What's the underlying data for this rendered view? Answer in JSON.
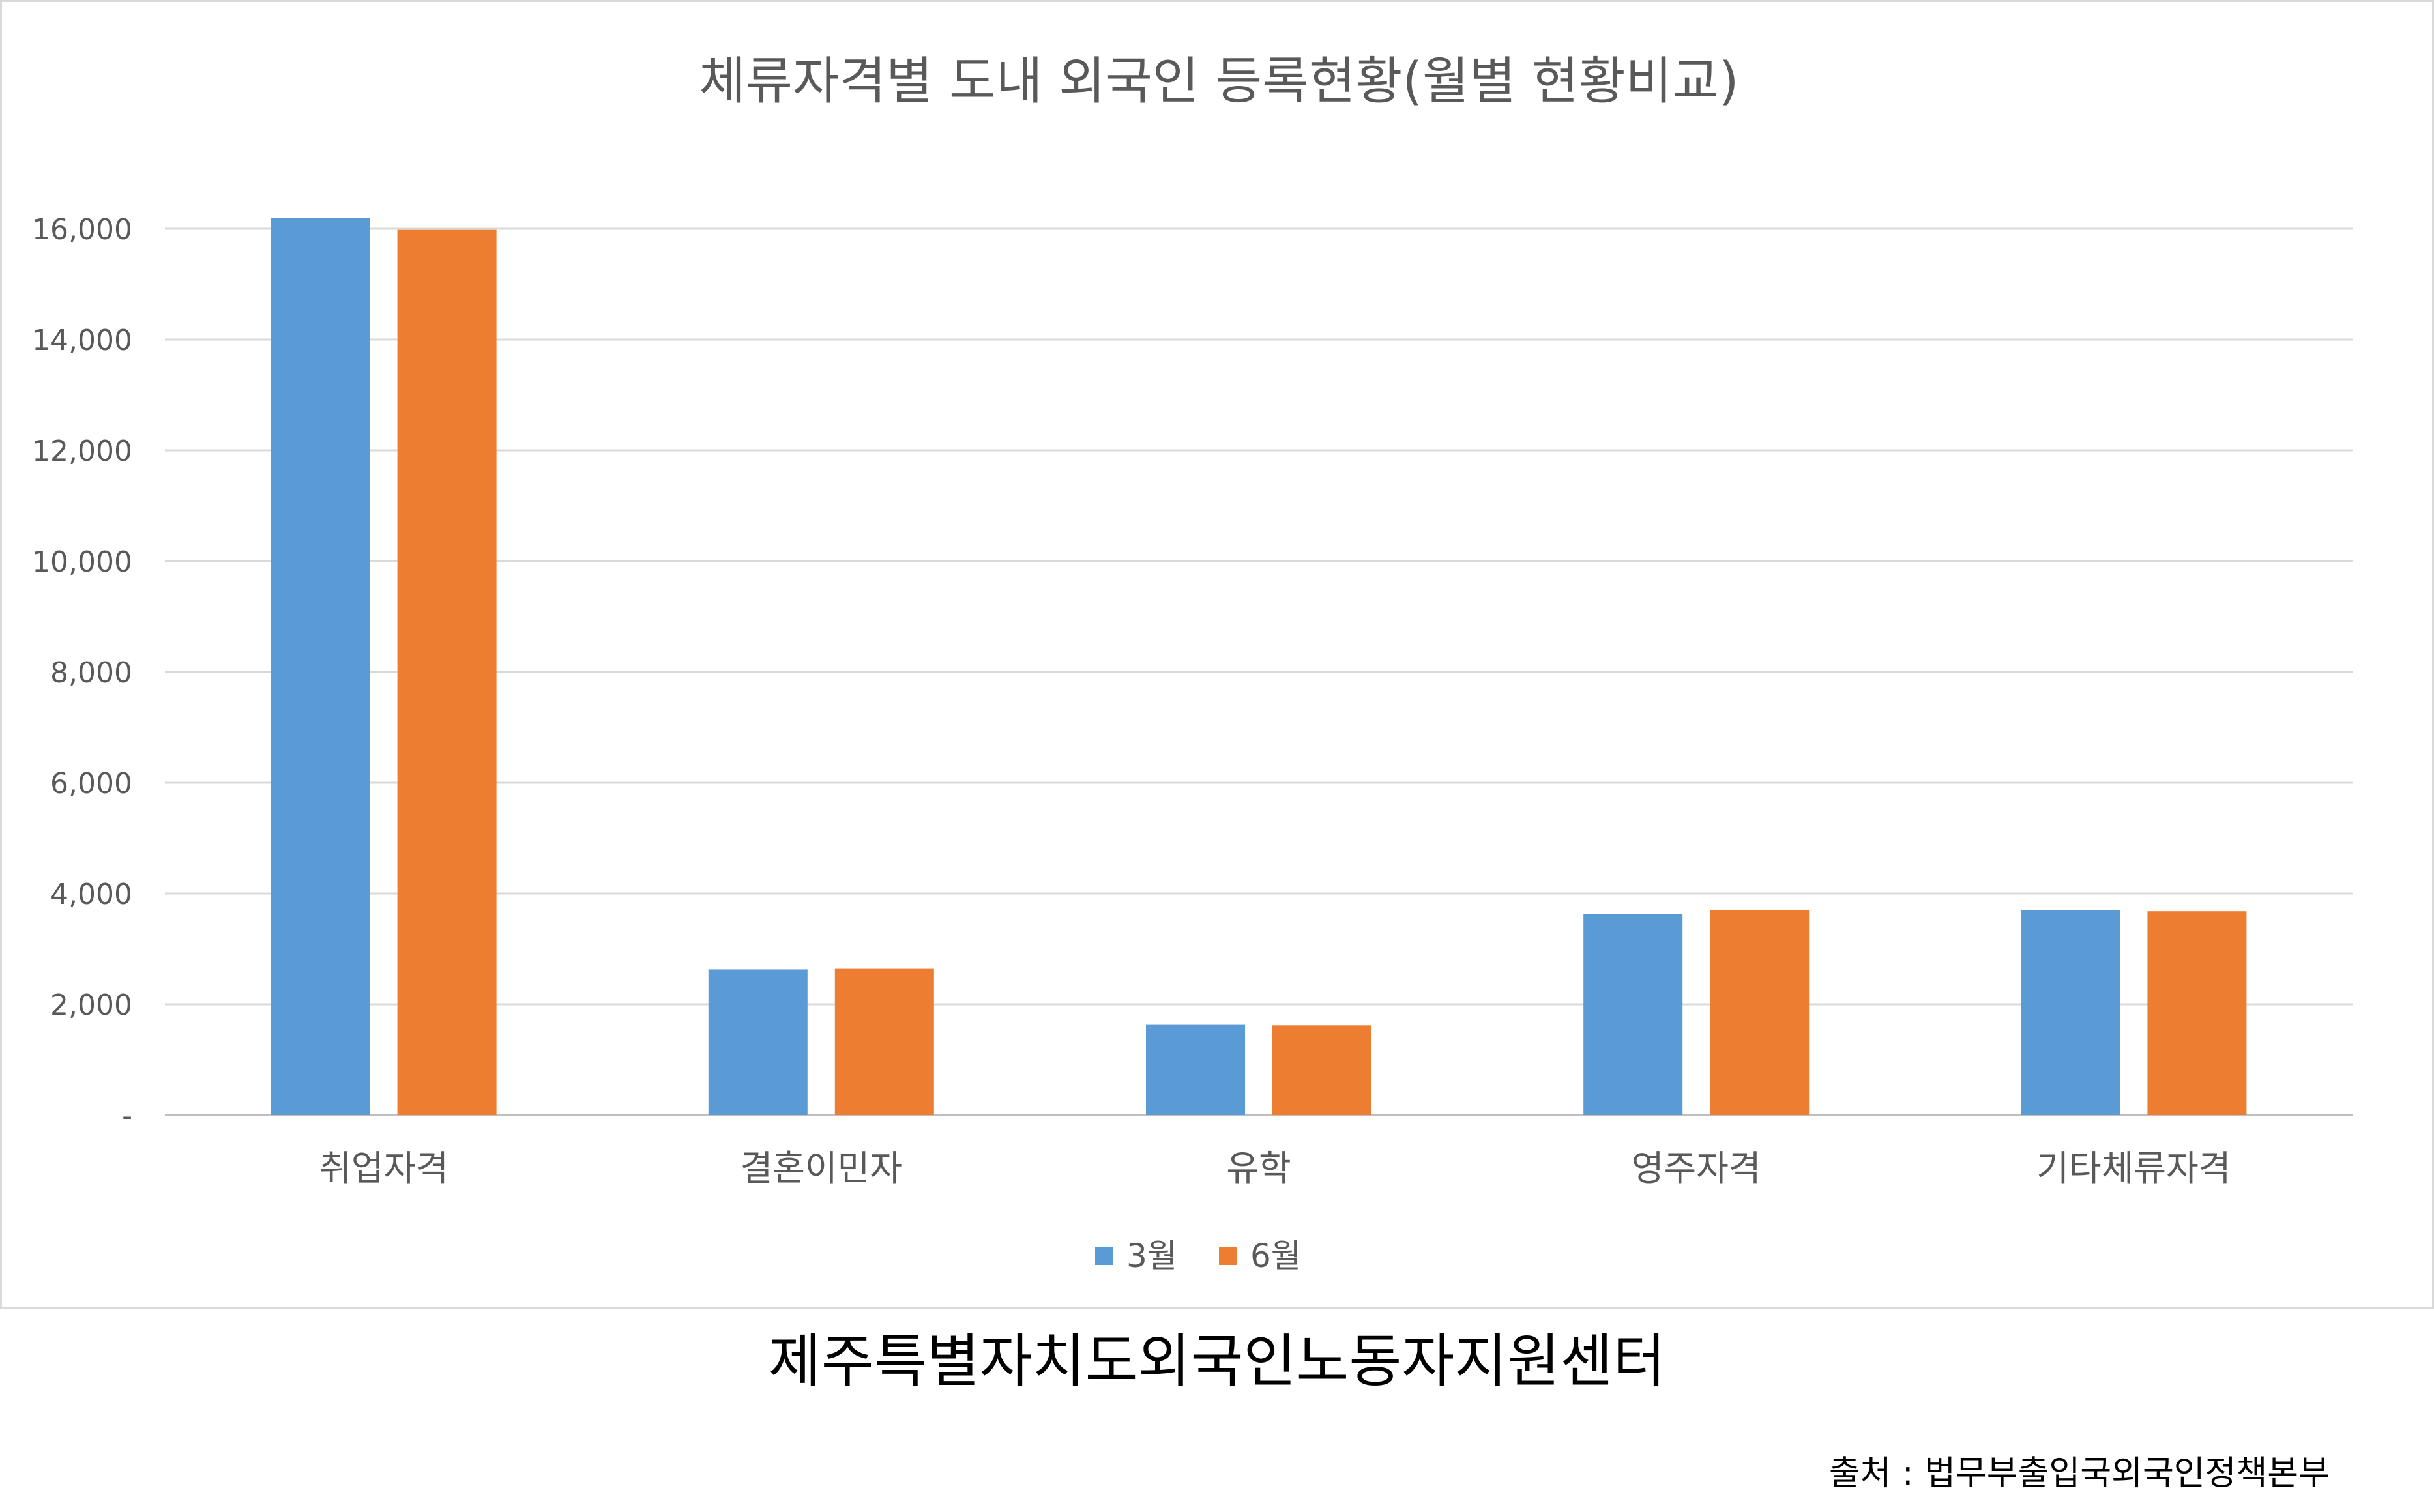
{
  "chart_data": {
    "type": "bar",
    "title": "체류자격별 도내 외국인 등록현황(월별 현황비교)",
    "categories": [
      "취업자격",
      "결혼이민자",
      "유학",
      "영주자격",
      "기타체류자격"
    ],
    "series": [
      {
        "name": "3월",
        "values": [
          16200,
          2630,
          1640,
          3630,
          3700
        ],
        "color": "#5b9bd5"
      },
      {
        "name": "6월",
        "values": [
          15980,
          2640,
          1620,
          3700,
          3680
        ],
        "color": "#ed7d31"
      }
    ],
    "ylim": [
      0,
      16000
    ],
    "yticks": [
      0,
      2000,
      4000,
      6000,
      8000,
      10000,
      12000,
      14000,
      16000
    ],
    "ytick_labels": [
      "-",
      "2,000",
      "4,000",
      "6,000",
      "8,000",
      "10,000",
      "12,000",
      "14,000",
      "16,000"
    ],
    "xlabel": "",
    "ylabel": "",
    "grid": true,
    "legend_position": "bottom"
  },
  "footer": {
    "organization": "제주특별자치도외국인노동자지원센터",
    "source": "출처 : 법무부출입국외국인정책본부"
  }
}
